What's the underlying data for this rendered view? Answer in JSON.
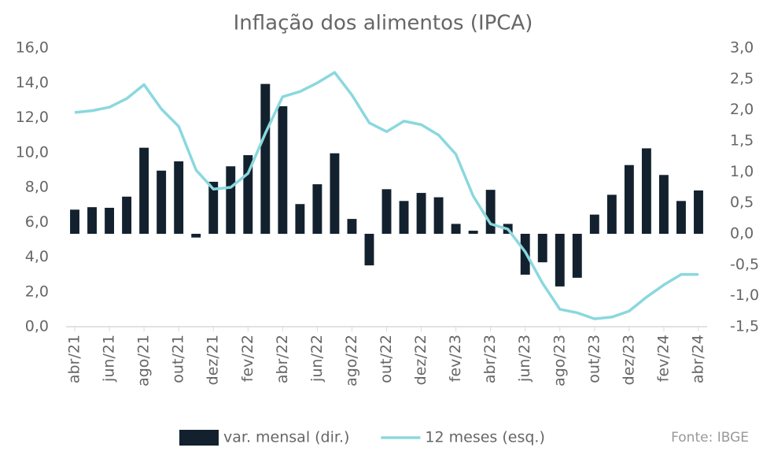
{
  "chart_data": {
    "type": "bar-line",
    "title": "Inflação dos alimentos (IPCA)",
    "source": "Fonte: IBGE",
    "categories": [
      "abr/21",
      null,
      "jun/21",
      null,
      "ago/21",
      null,
      "out/21",
      null,
      "dez/21",
      null,
      "fev/22",
      null,
      "abr/22",
      null,
      "jun/22",
      null,
      "ago/22",
      null,
      "out/22",
      null,
      "dez/22",
      null,
      "fev/23",
      null,
      "abr/23",
      null,
      "jun/23",
      null,
      "ago/23",
      null,
      "out/23",
      null,
      "dez/23",
      null,
      "fev/24",
      null,
      "abr/24"
    ],
    "series": [
      {
        "name": "var. mensal (dir.)",
        "type": "bar",
        "axis": "y2",
        "color": "#13212e",
        "values": [
          0.39,
          0.43,
          0.42,
          0.6,
          1.39,
          1.02,
          1.17,
          -0.06,
          0.84,
          1.09,
          1.27,
          2.42,
          2.06,
          0.48,
          0.8,
          1.3,
          0.24,
          -0.51,
          0.72,
          0.53,
          0.66,
          0.59,
          0.16,
          0.05,
          0.71,
          0.16,
          -0.66,
          -0.46,
          -0.85,
          -0.71,
          0.31,
          0.63,
          1.11,
          1.38,
          0.95,
          0.53,
          0.7
        ]
      },
      {
        "name": "12 meses (esq.)",
        "type": "line",
        "axis": "y",
        "color": "#8ad8de",
        "values": [
          12.3,
          12.4,
          12.6,
          13.1,
          13.9,
          12.5,
          11.5,
          9.0,
          7.9,
          8.0,
          8.8,
          11.1,
          13.2,
          13.5,
          14.0,
          14.6,
          13.3,
          11.7,
          11.2,
          11.8,
          11.6,
          11.0,
          9.9,
          7.5,
          5.9,
          5.6,
          4.3,
          2.5,
          1.0,
          0.8,
          0.45,
          0.55,
          0.9,
          1.7,
          2.4,
          3.0,
          3.0
        ]
      }
    ],
    "ylim": [
      0,
      16
    ],
    "yticks": [
      {
        "value": 0,
        "label": "0,0"
      },
      {
        "value": 2,
        "label": "2,0"
      },
      {
        "value": 4,
        "label": "4,0"
      },
      {
        "value": 6,
        "label": "6,0"
      },
      {
        "value": 8,
        "label": "8,0"
      },
      {
        "value": 10,
        "label": "10,0"
      },
      {
        "value": 12,
        "label": "12,0"
      },
      {
        "value": 14,
        "label": "14,0"
      },
      {
        "value": 16,
        "label": "16,0"
      }
    ],
    "y2lim": [
      -1.5,
      3.0
    ],
    "y2ticks": [
      {
        "value": -1.5,
        "label": "-1,5"
      },
      {
        "value": -1,
        "label": "-1,0"
      },
      {
        "value": -0.5,
        "label": "-0,5"
      },
      {
        "value": 0,
        "label": "0,0"
      },
      {
        "value": 0.5,
        "label": "0,5"
      },
      {
        "value": 1,
        "label": "1,0"
      },
      {
        "value": 1.5,
        "label": "1,5"
      },
      {
        "value": 2,
        "label": "2,0"
      },
      {
        "value": 2.5,
        "label": "2,5"
      },
      {
        "value": 3,
        "label": "3,0"
      }
    ],
    "legend": "bottom"
  }
}
